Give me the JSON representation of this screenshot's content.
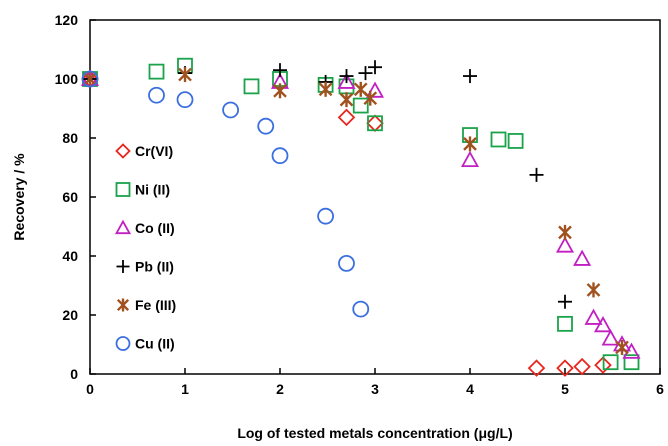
{
  "chart_data": {
    "type": "scatter",
    "title": "",
    "xlabel": "Log of tested metals concentration (μg/L)",
    "ylabel": "Recovery / %",
    "xlim": [
      0,
      6
    ],
    "ylim": [
      0,
      120
    ],
    "xticks": [
      "0",
      "1",
      "2",
      "3",
      "4",
      "5",
      "6"
    ],
    "yticks": [
      "0",
      "20",
      "40",
      "60",
      "80",
      "100",
      "120"
    ],
    "grid": false,
    "legend_position": "left",
    "series": [
      {
        "name": "Cr(VI)",
        "marker": "diamond",
        "color": "#e8261d",
        "points": [
          [
            0,
            100
          ],
          [
            2.7,
            87
          ],
          [
            3,
            85
          ],
          [
            4.7,
            2
          ],
          [
            5,
            2
          ],
          [
            5.18,
            2.5
          ],
          [
            5.4,
            3
          ]
        ]
      },
      {
        "name": "Ni (II)",
        "marker": "square",
        "color": "#1aa34a",
        "points": [
          [
            0,
            100
          ],
          [
            0.7,
            102.5
          ],
          [
            1,
            104.5
          ],
          [
            1.7,
            97.5
          ],
          [
            2,
            100
          ],
          [
            2.48,
            98
          ],
          [
            2.7,
            97.5
          ],
          [
            2.85,
            91
          ],
          [
            3,
            85
          ],
          [
            4,
            81
          ],
          [
            4.3,
            79.5
          ],
          [
            4.48,
            79
          ],
          [
            5,
            17
          ],
          [
            5.48,
            4
          ],
          [
            5.7,
            4
          ]
        ]
      },
      {
        "name": "Co (II)",
        "marker": "triangle",
        "color": "#c21fc2",
        "points": [
          [
            0,
            100
          ],
          [
            2,
            99
          ],
          [
            2.7,
            99
          ],
          [
            3,
            96
          ],
          [
            4,
            72.5
          ],
          [
            5,
            43.5
          ],
          [
            5.18,
            39
          ],
          [
            5.3,
            19
          ],
          [
            5.4,
            16.5
          ],
          [
            5.48,
            12
          ],
          [
            5.6,
            10
          ],
          [
            5.7,
            7.5
          ]
        ]
      },
      {
        "name": "Pb (II)",
        "marker": "plus",
        "color": "#000000",
        "points": [
          [
            0,
            100
          ],
          [
            1,
            102
          ],
          [
            2,
            103
          ],
          [
            2.48,
            99
          ],
          [
            2.7,
            101
          ],
          [
            2.9,
            102
          ],
          [
            3,
            104
          ],
          [
            4,
            101
          ],
          [
            4.7,
            67.5
          ],
          [
            5,
            24.5
          ]
        ]
      },
      {
        "name": "Fe (III)",
        "marker": "asterisk",
        "color": "#a0521e",
        "points": [
          [
            0,
            100
          ],
          [
            1,
            101.5
          ],
          [
            2,
            96
          ],
          [
            2.48,
            96.5
          ],
          [
            2.7,
            93
          ],
          [
            2.85,
            96.5
          ],
          [
            2.95,
            93.5
          ],
          [
            4,
            78
          ],
          [
            5,
            48
          ],
          [
            5.3,
            28.5
          ],
          [
            5.6,
            9
          ]
        ]
      },
      {
        "name": "Cu (II)",
        "marker": "circle",
        "color": "#3b6fe0",
        "points": [
          [
            0,
            100
          ],
          [
            0.7,
            94.5
          ],
          [
            1,
            93
          ],
          [
            1.48,
            89.5
          ],
          [
            1.85,
            84
          ],
          [
            2,
            74
          ],
          [
            2.48,
            53.5
          ],
          [
            2.7,
            37.5
          ],
          [
            2.85,
            22
          ]
        ]
      }
    ]
  }
}
